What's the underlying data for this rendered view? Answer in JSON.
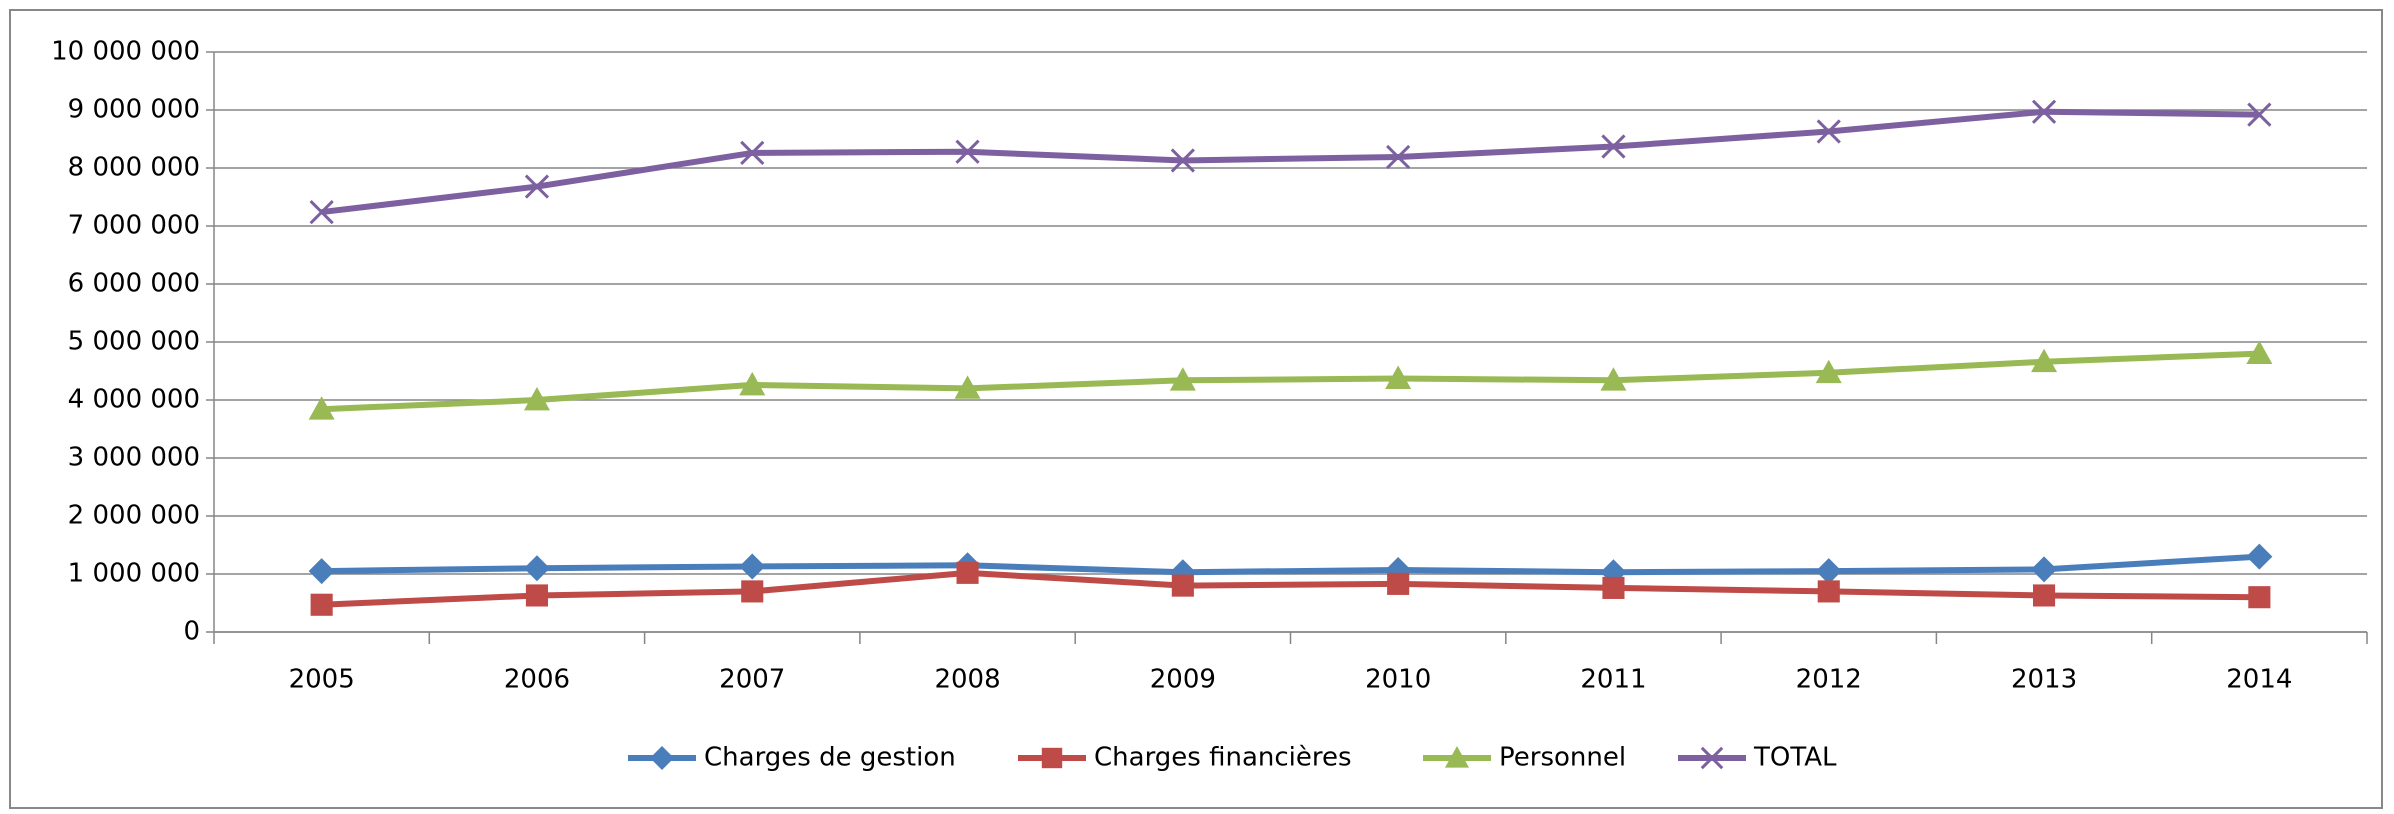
{
  "chart_data": {
    "type": "line",
    "categories": [
      "2005",
      "2006",
      "2007",
      "2008",
      "2009",
      "2010",
      "2011",
      "2012",
      "2013",
      "2014"
    ],
    "series": [
      {
        "name": "Charges de gestion",
        "color": "#4a7ebb",
        "marker": "diamond",
        "values": [
          1050000,
          1100000,
          1130000,
          1150000,
          1030000,
          1070000,
          1030000,
          1050000,
          1080000,
          1300000
        ]
      },
      {
        "name": "Charges financières",
        "color": "#be4b48",
        "marker": "square",
        "values": [
          470000,
          630000,
          700000,
          1020000,
          800000,
          830000,
          760000,
          700000,
          630000,
          600000
        ]
      },
      {
        "name": "Personnel",
        "color": "#98b954",
        "marker": "triangle",
        "values": [
          3840000,
          4000000,
          4260000,
          4200000,
          4340000,
          4370000,
          4340000,
          4470000,
          4660000,
          4800000
        ]
      },
      {
        "name": "TOTAL",
        "color": "#7d60a0",
        "marker": "x",
        "values": [
          7240000,
          7680000,
          8260000,
          8280000,
          8130000,
          8190000,
          8370000,
          8630000,
          8970000,
          8920000
        ]
      }
    ],
    "ylim": [
      0,
      10000000
    ],
    "yticks": [
      0,
      {
        "value": 1000000,
        "label": "1 000 000"
      },
      {
        "value": 2000000,
        "label": "2 000 000"
      },
      {
        "value": 3000000,
        "label": "3 000 000"
      },
      {
        "value": 4000000,
        "label": "4 000 000"
      },
      {
        "value": 5000000,
        "label": "5 000 000"
      },
      {
        "value": 6000000,
        "label": "6 000 000"
      },
      {
        "value": 7000000,
        "label": "7 000 000"
      },
      {
        "value": 8000000,
        "label": "8 000 000"
      },
      {
        "value": 9000000,
        "label": "9 000 000"
      },
      {
        "value": 10000000,
        "label": "10 000 000"
      }
    ],
    "grid": true,
    "legend": "bottom"
  }
}
